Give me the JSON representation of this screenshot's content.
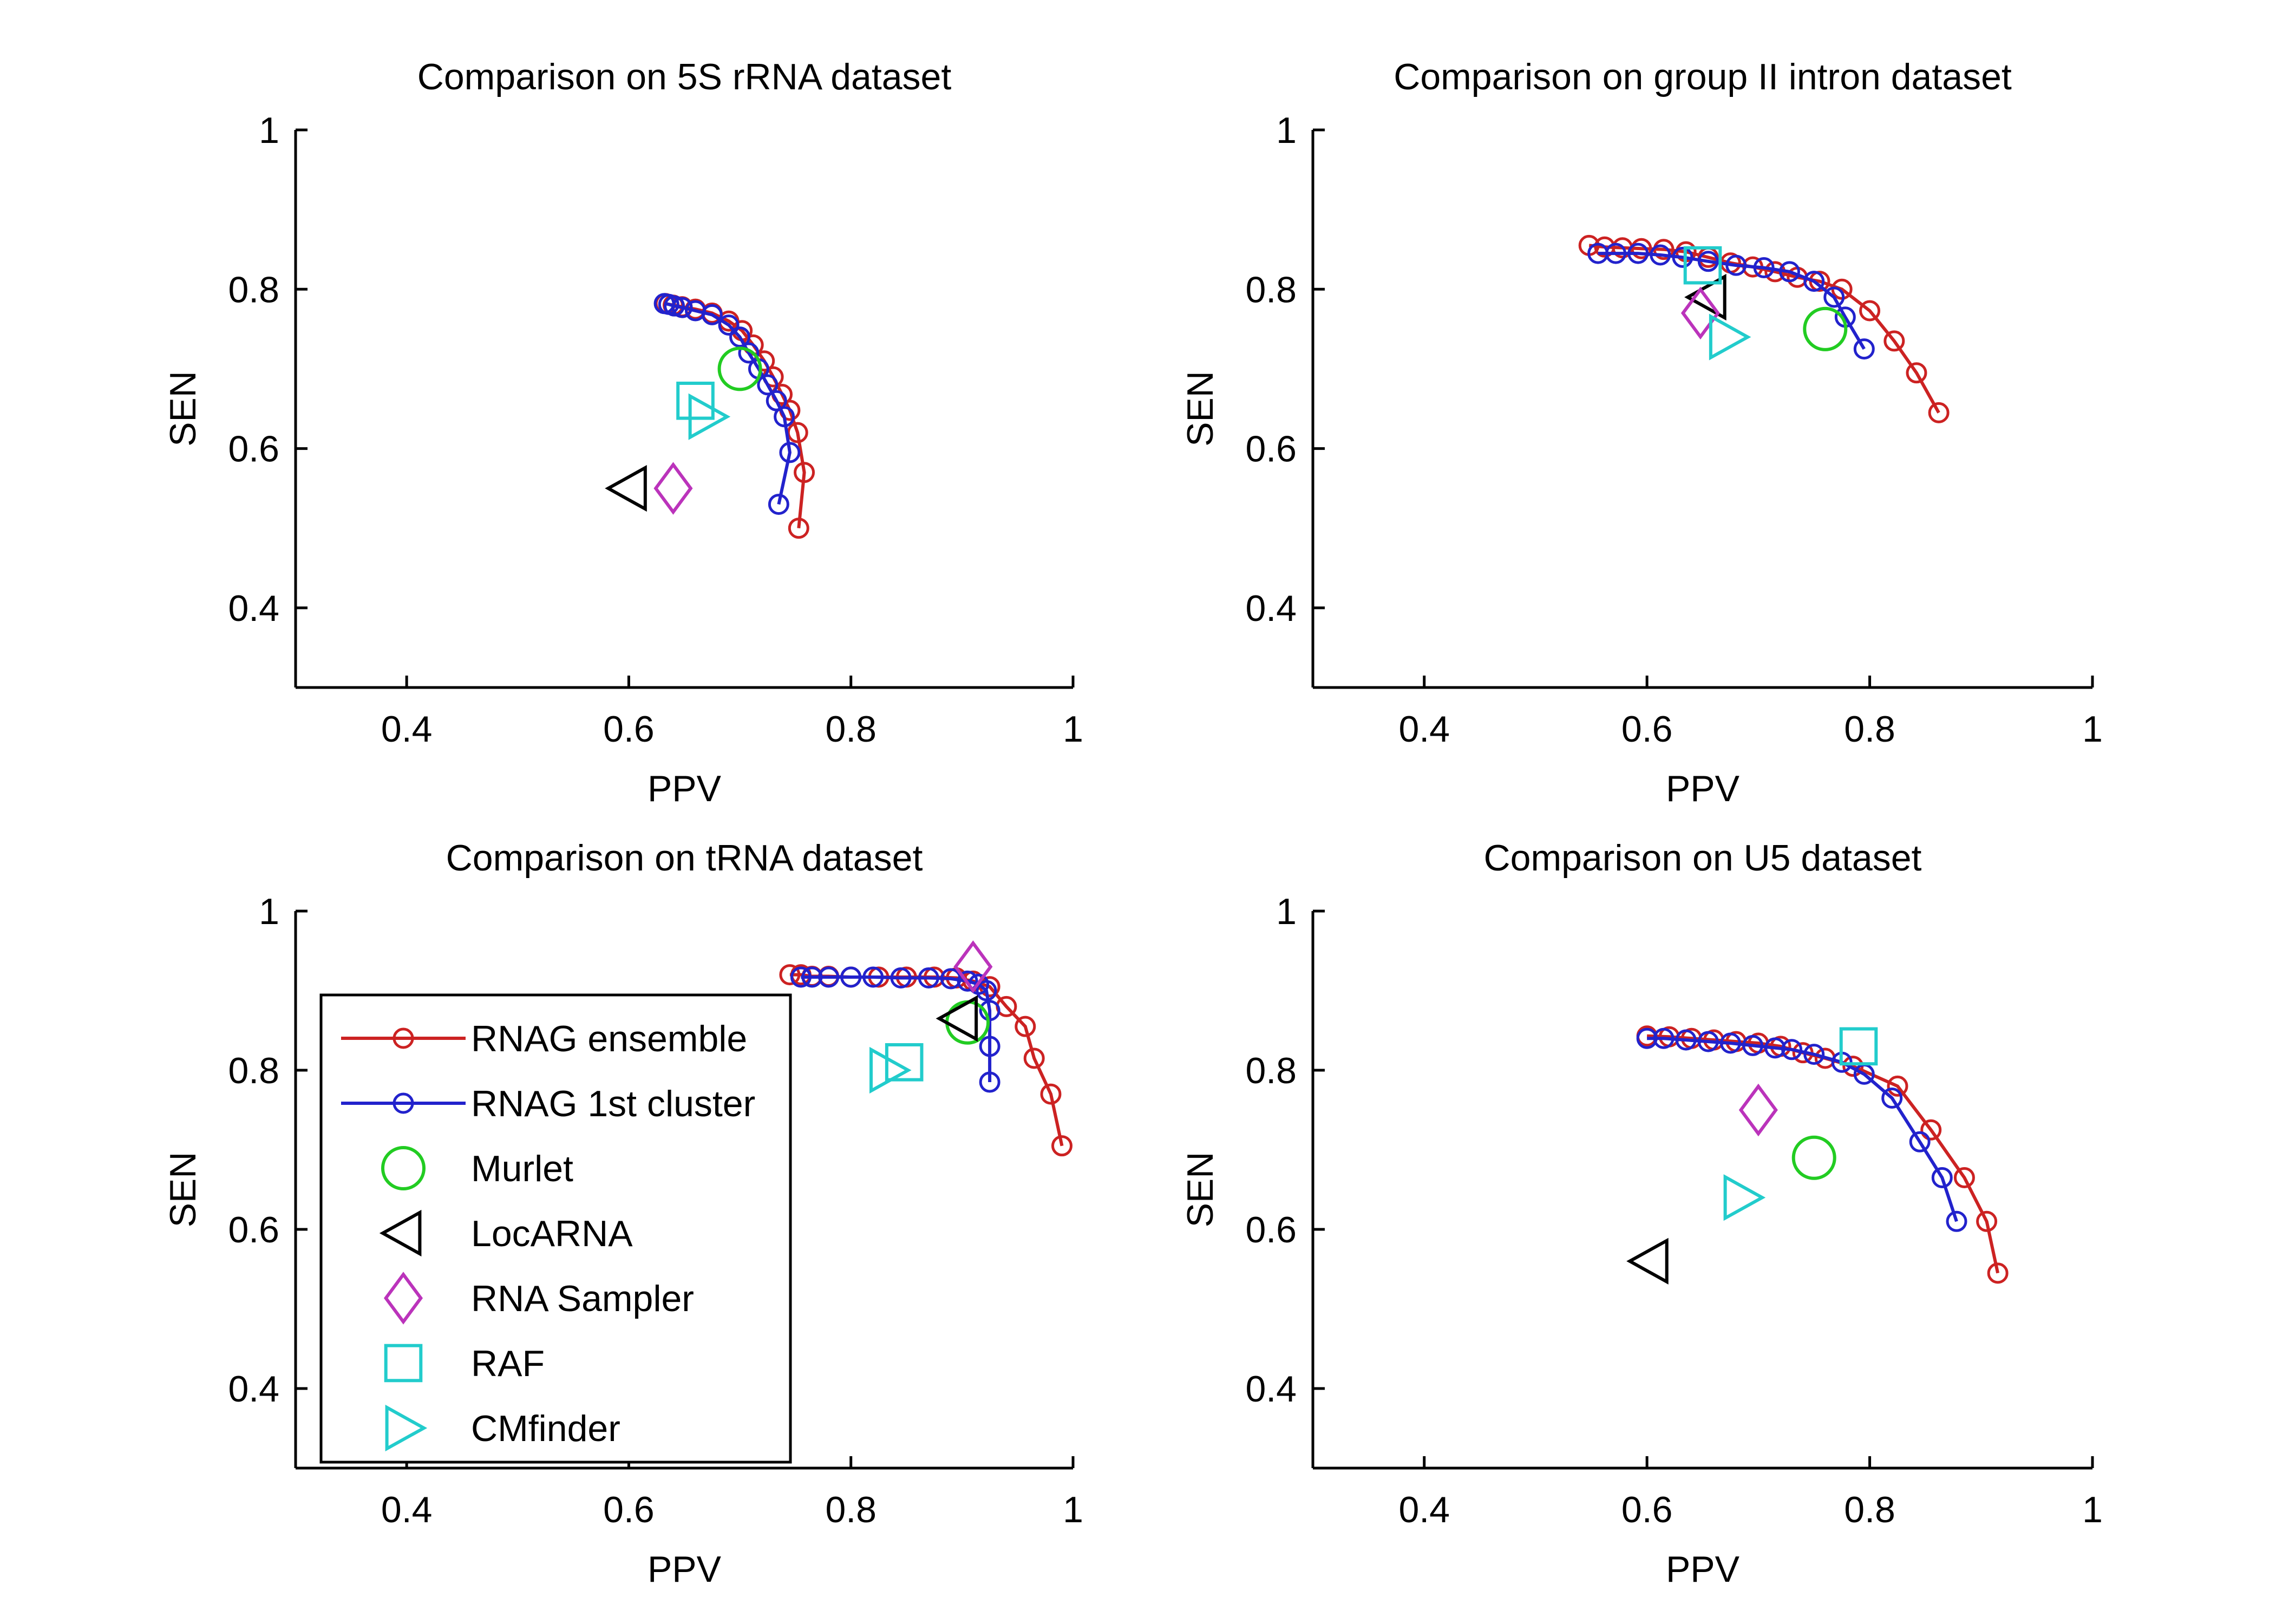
{
  "chart_data": [
    {
      "type": "scatter",
      "title": "Comparison on 5S rRNA dataset",
      "xlabel": "PPV",
      "ylabel": "SEN",
      "xlim": [
        0.3,
        1.0
      ],
      "ylim": [
        0.3,
        1.0
      ],
      "xticks": [
        "0.4",
        "0.6",
        "0.8",
        "1"
      ],
      "yticks": [
        "0.4",
        "0.6",
        "0.8",
        "1"
      ],
      "grid": false,
      "lines": [
        {
          "name": "RNAG ensemble",
          "color": "#cc2222",
          "points": [
            [
              0.633,
              0.782
            ],
            [
              0.64,
              0.78
            ],
            [
              0.648,
              0.778
            ],
            [
              0.66,
              0.775
            ],
            [
              0.675,
              0.77
            ],
            [
              0.69,
              0.76
            ],
            [
              0.702,
              0.748
            ],
            [
              0.712,
              0.73
            ],
            [
              0.722,
              0.71
            ],
            [
              0.73,
              0.69
            ],
            [
              0.738,
              0.668
            ],
            [
              0.745,
              0.648
            ],
            [
              0.752,
              0.62
            ],
            [
              0.758,
              0.57
            ],
            [
              0.753,
              0.5
            ]
          ]
        },
        {
          "name": "RNAG 1st cluster",
          "color": "#2222cc",
          "points": [
            [
              0.632,
              0.782
            ],
            [
              0.636,
              0.781
            ],
            [
              0.641,
              0.779
            ],
            [
              0.648,
              0.777
            ],
            [
              0.66,
              0.773
            ],
            [
              0.675,
              0.768
            ],
            [
              0.69,
              0.755
            ],
            [
              0.7,
              0.74
            ],
            [
              0.708,
              0.72
            ],
            [
              0.717,
              0.7
            ],
            [
              0.725,
              0.68
            ],
            [
              0.733,
              0.66
            ],
            [
              0.74,
              0.64
            ],
            [
              0.745,
              0.595
            ],
            [
              0.735,
              0.53
            ]
          ]
        }
      ],
      "markers": [
        {
          "name": "Murlet",
          "shape": "circle",
          "color": "#22cc22",
          "x": 0.7,
          "y": 0.7
        },
        {
          "name": "LocARNA",
          "shape": "triangle-left",
          "color": "#000000",
          "x": 0.6,
          "y": 0.55
        },
        {
          "name": "RNA Sampler",
          "shape": "diamond",
          "color": "#bb33bb",
          "x": 0.64,
          "y": 0.55
        },
        {
          "name": "RAF",
          "shape": "square",
          "color": "#22cccc",
          "x": 0.66,
          "y": 0.66
        },
        {
          "name": "CMfinder",
          "shape": "triangle-right",
          "color": "#22cccc",
          "x": 0.67,
          "y": 0.64
        }
      ]
    },
    {
      "type": "scatter",
      "title": "Comparison on group II intron dataset",
      "xlabel": "PPV",
      "ylabel": "SEN",
      "xlim": [
        0.3,
        1.0
      ],
      "ylim": [
        0.3,
        1.0
      ],
      "xticks": [
        "0.4",
        "0.6",
        "0.8",
        "1"
      ],
      "yticks": [
        "0.4",
        "0.6",
        "0.8",
        "1"
      ],
      "grid": false,
      "lines": [
        {
          "name": "RNAG ensemble",
          "color": "#cc2222",
          "points": [
            [
              0.548,
              0.855
            ],
            [
              0.562,
              0.853
            ],
            [
              0.578,
              0.852
            ],
            [
              0.595,
              0.851
            ],
            [
              0.615,
              0.85
            ],
            [
              0.635,
              0.847
            ],
            [
              0.655,
              0.84
            ],
            [
              0.675,
              0.833
            ],
            [
              0.695,
              0.828
            ],
            [
              0.715,
              0.822
            ],
            [
              0.735,
              0.815
            ],
            [
              0.755,
              0.81
            ],
            [
              0.775,
              0.8
            ],
            [
              0.8,
              0.773
            ],
            [
              0.822,
              0.735
            ],
            [
              0.842,
              0.695
            ],
            [
              0.862,
              0.645
            ]
          ]
        },
        {
          "name": "RNAG 1st cluster",
          "color": "#2222cc",
          "points": [
            [
              0.556,
              0.845
            ],
            [
              0.572,
              0.845
            ],
            [
              0.592,
              0.845
            ],
            [
              0.612,
              0.843
            ],
            [
              0.632,
              0.84
            ],
            [
              0.655,
              0.835
            ],
            [
              0.68,
              0.83
            ],
            [
              0.705,
              0.827
            ],
            [
              0.728,
              0.822
            ],
            [
              0.75,
              0.81
            ],
            [
              0.768,
              0.79
            ],
            [
              0.778,
              0.765
            ],
            [
              0.795,
              0.725
            ]
          ]
        }
      ],
      "markers": [
        {
          "name": "Murlet",
          "shape": "circle",
          "color": "#22cc22",
          "x": 0.76,
          "y": 0.75
        },
        {
          "name": "LocARNA",
          "shape": "triangle-left",
          "color": "#000000",
          "x": 0.655,
          "y": 0.79
        },
        {
          "name": "RNA Sampler",
          "shape": "diamond",
          "color": "#bb33bb",
          "x": 0.648,
          "y": 0.77
        },
        {
          "name": "RAF",
          "shape": "square",
          "color": "#22cccc",
          "x": 0.65,
          "y": 0.83
        },
        {
          "name": "CMfinder",
          "shape": "triangle-right",
          "color": "#22cccc",
          "x": 0.672,
          "y": 0.74
        }
      ]
    },
    {
      "type": "scatter",
      "title": "Comparison on tRNA dataset",
      "xlabel": "PPV",
      "ylabel": "SEN",
      "xlim": [
        0.3,
        1.0
      ],
      "ylim": [
        0.3,
        1.0
      ],
      "xticks": [
        "0.4",
        "0.6",
        "0.8",
        "1"
      ],
      "yticks": [
        "0.4",
        "0.6",
        "0.8",
        "1"
      ],
      "grid": false,
      "lines": [
        {
          "name": "RNAG ensemble",
          "color": "#cc2222",
          "points": [
            [
              0.745,
              0.92
            ],
            [
              0.755,
              0.92
            ],
            [
              0.765,
              0.918
            ],
            [
              0.78,
              0.918
            ],
            [
              0.8,
              0.917
            ],
            [
              0.825,
              0.917
            ],
            [
              0.85,
              0.917
            ],
            [
              0.875,
              0.917
            ],
            [
              0.895,
              0.916
            ],
            [
              0.91,
              0.912
            ],
            [
              0.925,
              0.905
            ],
            [
              0.94,
              0.88
            ],
            [
              0.957,
              0.855
            ],
            [
              0.965,
              0.815
            ],
            [
              0.98,
              0.77
            ],
            [
              0.99,
              0.705
            ]
          ]
        },
        {
          "name": "RNAG 1st cluster",
          "color": "#2222cc",
          "points": [
            [
              0.755,
              0.917
            ],
            [
              0.765,
              0.917
            ],
            [
              0.78,
              0.917
            ],
            [
              0.8,
              0.917
            ],
            [
              0.82,
              0.917
            ],
            [
              0.845,
              0.916
            ],
            [
              0.87,
              0.916
            ],
            [
              0.89,
              0.915
            ],
            [
              0.905,
              0.912
            ],
            [
              0.915,
              0.908
            ],
            [
              0.922,
              0.9
            ],
            [
              0.925,
              0.875
            ],
            [
              0.925,
              0.83
            ],
            [
              0.925,
              0.785
            ]
          ]
        }
      ],
      "markers": [
        {
          "name": "Murlet",
          "shape": "circle",
          "color": "#22cc22",
          "x": 0.905,
          "y": 0.86
        },
        {
          "name": "LocARNA",
          "shape": "triangle-left",
          "color": "#000000",
          "x": 0.898,
          "y": 0.865
        },
        {
          "name": "RNA Sampler",
          "shape": "diamond",
          "color": "#bb33bb",
          "x": 0.91,
          "y": 0.93
        },
        {
          "name": "RAF",
          "shape": "square",
          "color": "#22cccc",
          "x": 0.848,
          "y": 0.81
        },
        {
          "name": "CMfinder",
          "shape": "triangle-right",
          "color": "#22cccc",
          "x": 0.833,
          "y": 0.8
        }
      ]
    },
    {
      "type": "scatter",
      "title": "Comparison on U5 dataset",
      "xlabel": "PPV",
      "ylabel": "SEN",
      "xlim": [
        0.3,
        1.0
      ],
      "ylim": [
        0.3,
        1.0
      ],
      "xticks": [
        "0.4",
        "0.6",
        "0.8",
        "1"
      ],
      "yticks": [
        "0.4",
        "0.6",
        "0.8",
        "1"
      ],
      "grid": false,
      "lines": [
        {
          "name": "RNAG ensemble",
          "color": "#cc2222",
          "points": [
            [
              0.6,
              0.843
            ],
            [
              0.62,
              0.842
            ],
            [
              0.64,
              0.84
            ],
            [
              0.66,
              0.838
            ],
            [
              0.68,
              0.836
            ],
            [
              0.7,
              0.834
            ],
            [
              0.72,
              0.83
            ],
            [
              0.74,
              0.822
            ],
            [
              0.76,
              0.815
            ],
            [
              0.785,
              0.805
            ],
            [
              0.825,
              0.78
            ],
            [
              0.855,
              0.725
            ],
            [
              0.885,
              0.665
            ],
            [
              0.905,
              0.61
            ],
            [
              0.915,
              0.545
            ]
          ]
        },
        {
          "name": "RNAG 1st cluster",
          "color": "#2222cc",
          "points": [
            [
              0.6,
              0.84
            ],
            [
              0.615,
              0.84
            ],
            [
              0.635,
              0.838
            ],
            [
              0.655,
              0.836
            ],
            [
              0.675,
              0.834
            ],
            [
              0.695,
              0.831
            ],
            [
              0.715,
              0.828
            ],
            [
              0.73,
              0.826
            ],
            [
              0.75,
              0.82
            ],
            [
              0.775,
              0.81
            ],
            [
              0.795,
              0.795
            ],
            [
              0.82,
              0.765
            ],
            [
              0.845,
              0.71
            ],
            [
              0.865,
              0.665
            ],
            [
              0.878,
              0.61
            ]
          ]
        }
      ],
      "markers": [
        {
          "name": "Murlet",
          "shape": "circle",
          "color": "#22cc22",
          "x": 0.75,
          "y": 0.69
        },
        {
          "name": "LocARNA",
          "shape": "triangle-left",
          "color": "#000000",
          "x": 0.603,
          "y": 0.56
        },
        {
          "name": "RNA Sampler",
          "shape": "diamond",
          "color": "#bb33bb",
          "x": 0.7,
          "y": 0.75
        },
        {
          "name": "RAF",
          "shape": "square",
          "color": "#22cccc",
          "x": 0.79,
          "y": 0.83
        },
        {
          "name": "CMfinder",
          "shape": "triangle-right",
          "color": "#22cccc",
          "x": 0.685,
          "y": 0.64
        }
      ]
    }
  ],
  "legend": {
    "placement": "inside lower-left of tRNA panel",
    "entries": [
      {
        "label": "RNAG ensemble",
        "shape": "line-circle",
        "color": "#cc2222"
      },
      {
        "label": "RNAG 1st cluster",
        "shape": "line-circle",
        "color": "#2222cc"
      },
      {
        "label": "Murlet",
        "shape": "circle",
        "color": "#22cc22"
      },
      {
        "label": "LocARNA",
        "shape": "triangle-left",
        "color": "#000000"
      },
      {
        "label": "RNA Sampler",
        "shape": "diamond",
        "color": "#bb33bb"
      },
      {
        "label": "RAF",
        "shape": "square",
        "color": "#22cccc"
      },
      {
        "label": "CMfinder",
        "shape": "triangle-right",
        "color": "#22cccc"
      }
    ]
  }
}
